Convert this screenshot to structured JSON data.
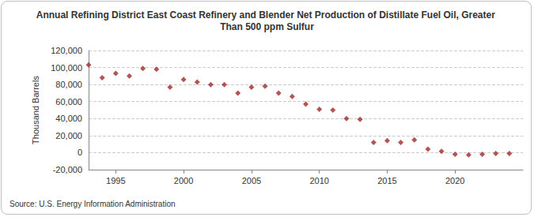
{
  "chart_data": {
    "type": "scatter",
    "title": "Annual Refining District East Coast Refinery and Blender Net Production of Distillate Fuel Oil, Greater Than 500 ppm Sulfur",
    "y_label": "Thousand Barrels",
    "source": "Source: U.S. Energy Information Administration",
    "x": [
      1993,
      1994,
      1995,
      1996,
      1997,
      1998,
      1999,
      2000,
      2001,
      2002,
      2003,
      2004,
      2005,
      2006,
      2007,
      2008,
      2009,
      2010,
      2011,
      2012,
      2013,
      2014,
      2015,
      2016,
      2017,
      2018,
      2019,
      2020,
      2021,
      2022,
      2023,
      2024
    ],
    "values": [
      103000,
      88000,
      93000,
      90000,
      99000,
      98000,
      77000,
      86000,
      83000,
      80000,
      80000,
      70000,
      77000,
      78000,
      70000,
      66000,
      57000,
      51000,
      50000,
      40000,
      39000,
      12000,
      14000,
      12000,
      15000,
      4000,
      1500,
      -2000,
      -2500,
      -2000,
      -1000,
      -1000
    ],
    "color": "#a02a2a",
    "marker": "diamond",
    "xlim": [
      1993,
      2025
    ],
    "xticks": [
      1995,
      2000,
      2005,
      2010,
      2015,
      2020
    ],
    "ylim": [
      -20000,
      120000
    ],
    "yticks": [
      {
        "value": -20000,
        "label": "-20,000"
      },
      0,
      {
        "value": 20000,
        "label": "20,000"
      },
      {
        "value": 40000,
        "label": "40,000"
      },
      {
        "value": 60000,
        "label": "60,000"
      },
      {
        "value": 80000,
        "label": "80,000"
      },
      {
        "value": 100000,
        "label": "100,000"
      },
      {
        "value": 120000,
        "label": "120,000"
      }
    ],
    "grid": true
  }
}
